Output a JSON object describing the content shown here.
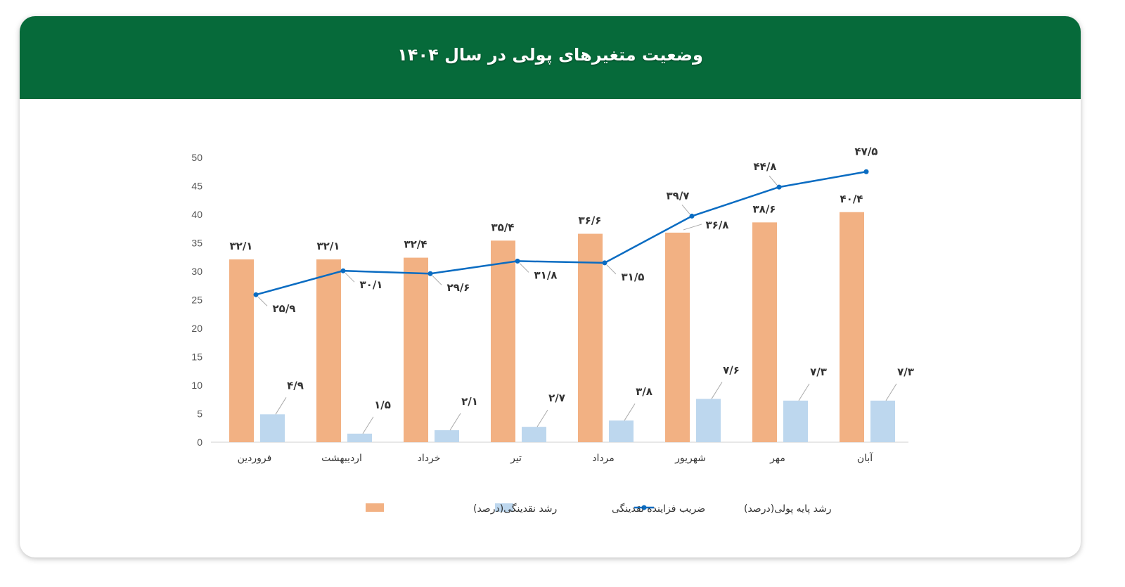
{
  "header": {
    "title": "وضعیت متغیرهای پولی در سال ۱۴۰۴"
  },
  "colors": {
    "header_bg": "#066a3a",
    "liquidity_growth": "#f2b183",
    "multiplier": "#bdd7ee",
    "base_money": "#0a6cc2"
  },
  "chart_data": {
    "type": "bar+line",
    "title": "",
    "categories": [
      "فروردین",
      "اردیبهشت",
      "خرداد",
      "تیر",
      "مرداد",
      "شهریور",
      "مهر",
      "آبان"
    ],
    "ylim": [
      0,
      50
    ],
    "yticks": [
      0,
      5,
      10,
      15,
      20,
      25,
      30,
      35,
      40,
      45,
      50
    ],
    "grid": false,
    "legend_position": "bottom",
    "series": [
      {
        "name": "رشد نقدینگی(درصد)",
        "type": "bar",
        "values": [
          32.1,
          32.1,
          32.4,
          35.4,
          36.6,
          36.8,
          38.6,
          40.4
        ]
      },
      {
        "name": "ضریب فزاینده نقدینگی",
        "type": "bar",
        "values": [
          4.9,
          1.5,
          2.1,
          2.7,
          3.8,
          7.6,
          7.3,
          7.3
        ]
      },
      {
        "name": "رشد پایه پولی(درصد)",
        "type": "line",
        "values": [
          25.9,
          30.1,
          29.6,
          31.8,
          31.5,
          39.7,
          44.8,
          47.5
        ]
      }
    ]
  }
}
